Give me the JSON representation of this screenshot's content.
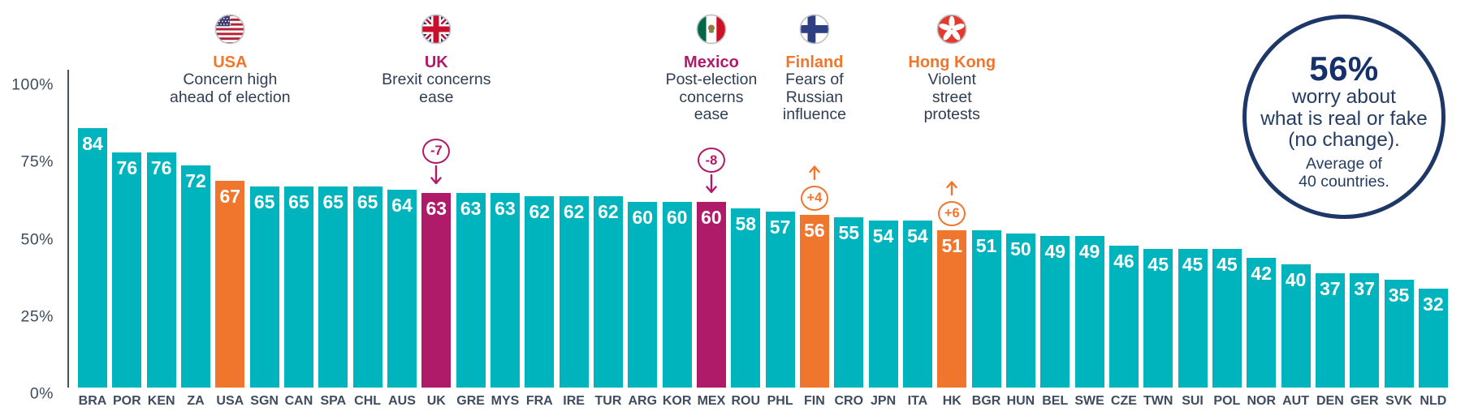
{
  "chart_data": {
    "type": "bar",
    "title": "",
    "xlabel": "",
    "ylabel": "",
    "ylim": [
      0,
      100
    ],
    "grid": false,
    "categories": [
      "BRA",
      "POR",
      "KEN",
      "ZA",
      "USA",
      "SGN",
      "CAN",
      "SPA",
      "CHL",
      "AUS",
      "UK",
      "GRE",
      "MYS",
      "FRA",
      "IRE",
      "TUR",
      "ARG",
      "KOR",
      "MEX",
      "ROU",
      "PHL",
      "FIN",
      "CRO",
      "JPN",
      "ITA",
      "HK",
      "BGR",
      "HUN",
      "BEL",
      "SWE",
      "CZE",
      "TWN",
      "SUI",
      "POL",
      "NOR",
      "AUT",
      "DEN",
      "GER",
      "SVK",
      "NLD"
    ],
    "values": [
      84,
      76,
      76,
      72,
      67,
      65,
      65,
      65,
      65,
      64,
      63,
      63,
      63,
      62,
      62,
      62,
      60,
      60,
      60,
      58,
      57,
      56,
      55,
      54,
      54,
      51,
      51,
      50,
      49,
      49,
      46,
      45,
      45,
      45,
      42,
      40,
      37,
      37,
      35,
      32
    ],
    "yticks": [
      {
        "value": 0,
        "label": "0%"
      },
      {
        "value": 25,
        "label": "25%"
      },
      {
        "value": 50,
        "label": "50%"
      },
      {
        "value": 75,
        "label": "75%"
      },
      {
        "value": 100,
        "label": "100%"
      }
    ],
    "highlights": {
      "USA": "orange",
      "UK": "magenta",
      "MEX": "magenta",
      "FIN": "orange",
      "HK": "orange"
    }
  },
  "annotations": [
    {
      "name": "USA",
      "flag": "usa-flag-icon",
      "flag_kind": "usa",
      "name_color": "orange",
      "bar": "USA",
      "lines": [
        "Concern high",
        "ahead of election"
      ]
    },
    {
      "name": "UK",
      "flag": "uk-flag-icon",
      "flag_kind": "uk",
      "name_color": "magenta",
      "bar": "UK",
      "lines": [
        "Brexit concerns",
        "ease"
      ],
      "change": {
        "label": "-7",
        "direction": "down"
      }
    },
    {
      "name": "Mexico",
      "flag": "mexico-flag-icon",
      "flag_kind": "mexico",
      "name_color": "magenta",
      "bar": "MEX",
      "lines": [
        "Post-election",
        "concerns",
        "ease"
      ],
      "change": {
        "label": "-8",
        "direction": "down"
      }
    },
    {
      "name": "Finland",
      "flag": "finland-flag-icon",
      "flag_kind": "finland",
      "name_color": "orange",
      "bar": "FIN",
      "lines": [
        "Fears of",
        "Russian",
        "influence"
      ],
      "change": {
        "label": "+4",
        "direction": "up"
      }
    },
    {
      "name": "Hong Kong",
      "flag": "hongkong-flag-icon",
      "flag_kind": "hongkong",
      "name_color": "orange",
      "bar": "HK",
      "lines": [
        "Violent",
        "street",
        "protests"
      ],
      "change": {
        "label": "+6",
        "direction": "up"
      }
    }
  ],
  "summary_circle": {
    "headline": "56%",
    "body_lines": [
      "worry about",
      "what is real or fake",
      "(no change)."
    ],
    "footnote_lines": [
      "Average of",
      "40 countries."
    ]
  },
  "colors": {
    "teal": "#00b4bd",
    "orange": "#f1762d",
    "magenta": "#b01b69",
    "navy": "#1d3768",
    "axis_text": "#3e4c5d"
  }
}
